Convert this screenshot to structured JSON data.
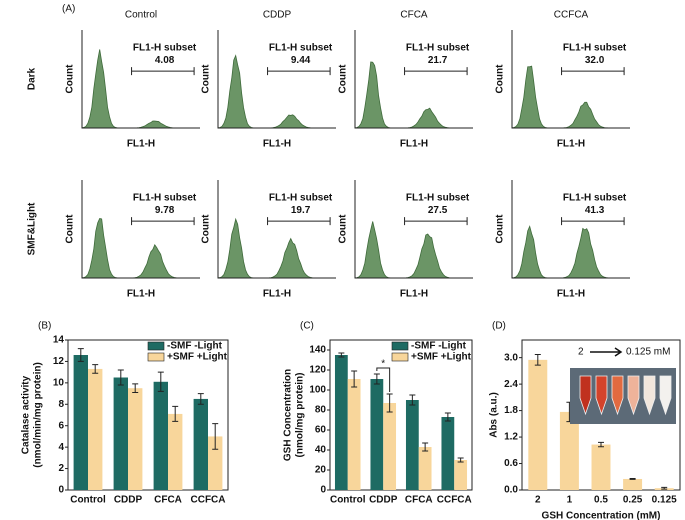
{
  "panel_a": {
    "label": "(A)",
    "columns": [
      "Control",
      "CDDP",
      "CFCA",
      "CCFCA"
    ],
    "rows": [
      "Dark",
      "SMF&Light"
    ],
    "gate_label": "FL1-H subset",
    "x_label": "FL1-H",
    "y_label": "Count",
    "subsets": [
      [
        "4.08",
        "9.44",
        "21.7",
        "32.0"
      ],
      [
        "9.78",
        "19.7",
        "27.5",
        "41.3"
      ]
    ]
  },
  "chart_data": [
    {
      "type": "bar",
      "label": "(B)",
      "y_label": [
        "Catalase activity",
        "(nmol/min/mg protein)"
      ],
      "categories": [
        "Control",
        "CDDP",
        "CFCA",
        "CCFCA"
      ],
      "series": [
        {
          "name": "-SMF -Light",
          "color": "#1e6b63",
          "values": [
            12.6,
            10.5,
            10.1,
            8.5
          ],
          "errors": [
            0.6,
            0.7,
            0.9,
            0.5
          ]
        },
        {
          "name": "+SMF +Light",
          "color": "#f8d69b",
          "values": [
            11.3,
            9.5,
            7.1,
            5.0
          ],
          "errors": [
            0.4,
            0.4,
            0.7,
            1.2
          ]
        }
      ],
      "ylim": [
        0,
        14
      ],
      "yticks": [
        0,
        2,
        4,
        6,
        8,
        10,
        12,
        14
      ],
      "legend": "upper right"
    },
    {
      "type": "bar",
      "label": "(C)",
      "y_label": [
        "GSH Concentration",
        "(nmol/mg protein)"
      ],
      "categories": [
        "Control",
        "CDDP",
        "CFCA",
        "CCFCA"
      ],
      "series": [
        {
          "name": "-SMF -Light",
          "color": "#1e6b63",
          "values": [
            135,
            111,
            90,
            73
          ],
          "errors": [
            2,
            5,
            5,
            4
          ]
        },
        {
          "name": "+SMF +Light",
          "color": "#f8d69b",
          "values": [
            111,
            87,
            43,
            30
          ],
          "errors": [
            8,
            9,
            4,
            2
          ]
        }
      ],
      "ylim": [
        0,
        150
      ],
      "yticks": [
        0,
        20,
        40,
        60,
        80,
        100,
        120,
        140
      ],
      "legend": "upper right",
      "annotation": {
        "text": "*",
        "category": 1
      }
    },
    {
      "type": "bar",
      "label": "(D)",
      "y_label": [
        "Abs (a.u.)"
      ],
      "x_label": "GSH Concentration (mM)",
      "categories": [
        "2",
        "1",
        "0.5",
        "0.25",
        "0.125"
      ],
      "series": [
        {
          "color": "#f8d69b",
          "values": [
            2.95,
            1.77,
            1.03,
            0.25,
            0.04
          ],
          "errors": [
            0.12,
            0.22,
            0.05,
            0.01,
            0.02
          ]
        }
      ],
      "ylim": [
        0,
        3.4
      ],
      "yticks": [
        {
          "value": 0,
          "label": "0.0"
        },
        0.6,
        1.2,
        1.8,
        2.4,
        {
          "value": 3,
          "label": "3.0"
        }
      ],
      "inset": {
        "from": "2",
        "to": "0.125 mM"
      }
    }
  ]
}
